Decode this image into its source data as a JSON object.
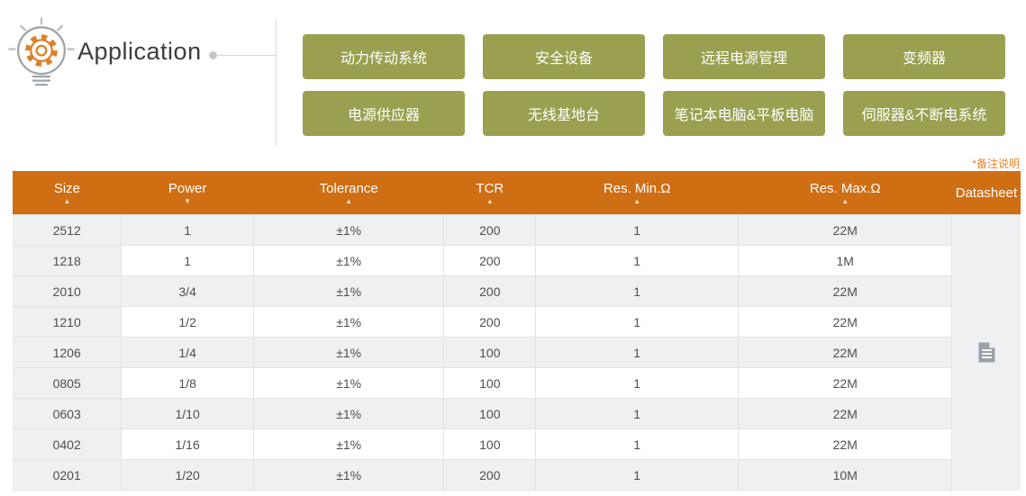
{
  "application": {
    "title": "Application",
    "buttons": [
      "动力传动系统",
      "安全设备",
      "远程电源管理",
      "变频器",
      "电源供应器",
      "无线基地台",
      "笔记本电脑&平板电脑",
      "伺服器&不断电系统"
    ]
  },
  "table": {
    "note": "*备注说明",
    "columns": [
      {
        "label": "Size",
        "sort": "asc"
      },
      {
        "label": "Power",
        "sort": "desc"
      },
      {
        "label": "Tolerance",
        "sort": "asc"
      },
      {
        "label": "TCR",
        "sort": "asc"
      },
      {
        "label": "Res. Min.Ω",
        "sort": "asc"
      },
      {
        "label": "Res. Max.Ω",
        "sort": "asc"
      },
      {
        "label": "Datasheet",
        "sort": "none"
      }
    ],
    "rows": [
      {
        "size": "2512",
        "power": "1",
        "tolerance": "±1%",
        "tcr": "200",
        "res_min": "1",
        "res_max": "22M"
      },
      {
        "size": "1218",
        "power": "1",
        "tolerance": "±1%",
        "tcr": "200",
        "res_min": "1",
        "res_max": "1M"
      },
      {
        "size": "2010",
        "power": "3/4",
        "tolerance": "±1%",
        "tcr": "200",
        "res_min": "1",
        "res_max": "22M"
      },
      {
        "size": "1210",
        "power": "1/2",
        "tolerance": "±1%",
        "tcr": "200",
        "res_min": "1",
        "res_max": "22M"
      },
      {
        "size": "1206",
        "power": "1/4",
        "tolerance": "±1%",
        "tcr": "100",
        "res_min": "1",
        "res_max": "22M"
      },
      {
        "size": "0805",
        "power": "1/8",
        "tolerance": "±1%",
        "tcr": "100",
        "res_min": "1",
        "res_max": "22M"
      },
      {
        "size": "0603",
        "power": "1/10",
        "tolerance": "±1%",
        "tcr": "100",
        "res_min": "1",
        "res_max": "22M"
      },
      {
        "size": "0402",
        "power": "1/16",
        "tolerance": "±1%",
        "tcr": "100",
        "res_min": "1",
        "res_max": "22M"
      },
      {
        "size": "0201",
        "power": "1/20",
        "tolerance": "±1%",
        "tcr": "200",
        "res_min": "1",
        "res_max": "10M"
      }
    ],
    "icons": {
      "datasheet": "document-icon",
      "sort_asc": "▲",
      "sort_desc": "▼"
    }
  },
  "colors": {
    "header_bg": "#d06e14",
    "button_bg": "#9aa050",
    "row_alt_bg": "#eef0f1",
    "note_color": "#e0862e",
    "icon_gear": "#dd802a",
    "icon_bulb": "#9ea4a9"
  }
}
